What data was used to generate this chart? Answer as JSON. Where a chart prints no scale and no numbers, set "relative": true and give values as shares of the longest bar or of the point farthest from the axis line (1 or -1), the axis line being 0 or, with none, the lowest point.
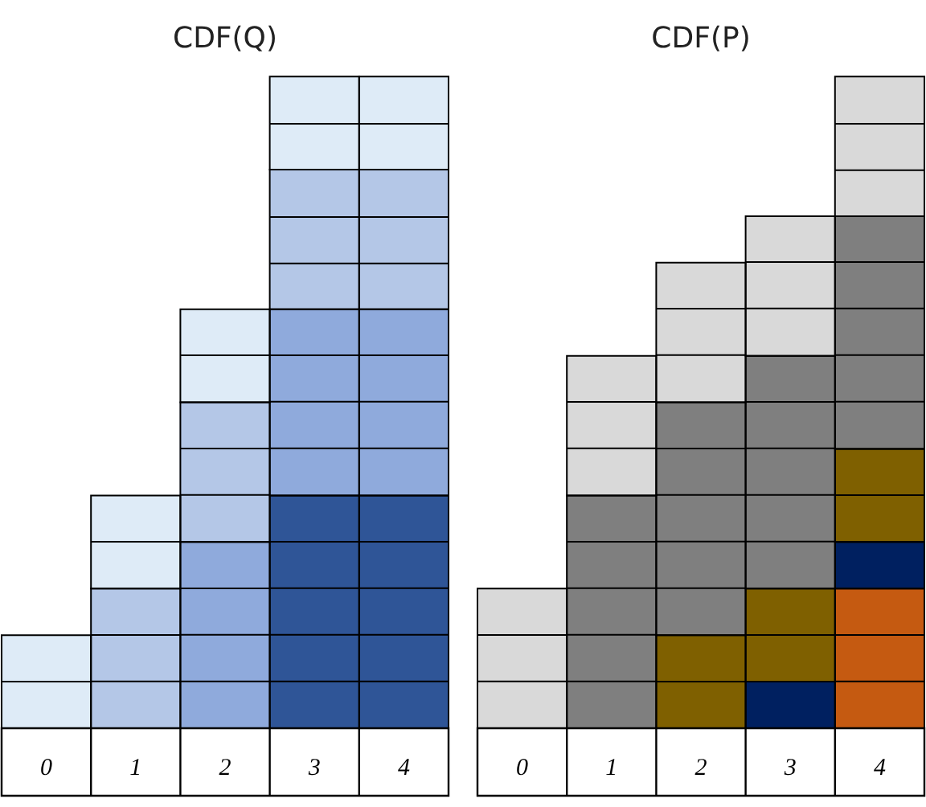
{
  "chart_data": [
    {
      "type": "bar",
      "title": "CDF(Q)",
      "stacked": true,
      "relative": true,
      "categories": [
        "0",
        "1",
        "2",
        "3",
        "4"
      ],
      "series": [
        {
          "color": "#2f5597",
          "values": [
            null,
            null,
            null,
            0.3571,
            0.3571
          ]
        },
        {
          "color": "#8faadc",
          "values": [
            null,
            null,
            0.2857,
            0.2857,
            0.2857
          ]
        },
        {
          "color": "#b4c7e7",
          "values": [
            null,
            0.2143,
            0.2143,
            0.2143,
            0.2143
          ]
        },
        {
          "color": "#deebf7",
          "values": [
            0.1429,
            0.1429,
            0.1429,
            0.1429,
            0.1429
          ]
        }
      ]
    },
    {
      "type": "bar",
      "title": "CDF(P)",
      "stacked": true,
      "relative": true,
      "categories": [
        "0",
        "1",
        "2",
        "3",
        "4"
      ],
      "series": [
        {
          "color": "#c55a11",
          "values": [
            null,
            null,
            null,
            null,
            0.2143
          ]
        },
        {
          "color": "#002060",
          "values": [
            null,
            null,
            null,
            0.0714,
            0.0714
          ]
        },
        {
          "color": "#7f6000",
          "values": [
            null,
            null,
            0.1429,
            0.1429,
            0.1429
          ]
        },
        {
          "color": "#7f7f7f",
          "values": [
            null,
            0.3571,
            0.3571,
            0.3571,
            0.3571
          ]
        },
        {
          "color": "#d9d9d9",
          "values": [
            0.2143,
            0.2143,
            0.2143,
            0.2143,
            0.2143
          ]
        }
      ]
    }
  ]
}
